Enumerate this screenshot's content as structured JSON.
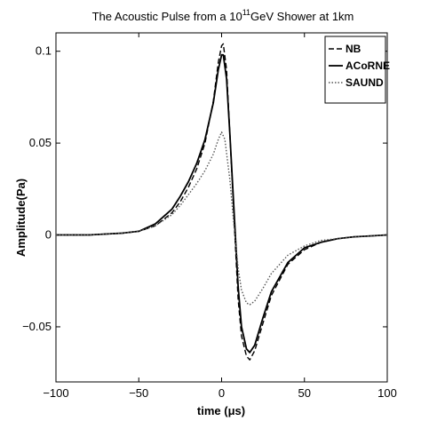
{
  "chart_data": {
    "type": "line",
    "title": {
      "prefix": "The Acoustic Pulse from a 10",
      "superscript": "11",
      "suffix": "GeV Shower at 1km"
    },
    "xlabel": "time (μs)",
    "ylabel": "Amplitude(Pa)",
    "xlim": [
      -100,
      100
    ],
    "ylim": [
      -0.08,
      0.11
    ],
    "xticks": [
      -100,
      -50,
      0,
      50,
      100
    ],
    "xtick_labels": [
      "−100",
      "−50",
      "0",
      "50",
      "100"
    ],
    "yticks": [
      -0.05,
      0,
      0.05,
      0.1
    ],
    "ytick_labels": [
      "−0.05",
      "0",
      "0.05",
      "0.1"
    ],
    "grid": false,
    "legend_position": "top-right",
    "series": [
      {
        "name": "NB",
        "style": "dashed",
        "color": "#000000",
        "x": [
          -100,
          -80,
          -60,
          -50,
          -40,
          -30,
          -25,
          -20,
          -15,
          -10,
          -5,
          -2,
          0,
          1,
          3,
          5,
          8,
          10,
          12,
          15,
          17,
          20,
          25,
          30,
          40,
          50,
          60,
          70,
          80,
          90,
          100
        ],
        "y": [
          0.0,
          0.0,
          0.001,
          0.002,
          0.005,
          0.012,
          0.018,
          0.026,
          0.036,
          0.05,
          0.073,
          0.094,
          0.103,
          0.104,
          0.09,
          0.055,
          0.0,
          -0.035,
          -0.055,
          -0.066,
          -0.068,
          -0.063,
          -0.048,
          -0.033,
          -0.016,
          -0.008,
          -0.004,
          -0.002,
          -0.001,
          -0.0005,
          0.0
        ]
      },
      {
        "name": "ACoRNE",
        "style": "solid",
        "color": "#000000",
        "x": [
          -100,
          -80,
          -60,
          -50,
          -40,
          -30,
          -25,
          -20,
          -15,
          -10,
          -5,
          -2,
          0,
          1,
          3,
          5,
          8,
          10,
          12,
          15,
          17,
          20,
          25,
          30,
          40,
          50,
          60,
          70,
          80,
          90,
          100
        ],
        "y": [
          0.0,
          0.0,
          0.001,
          0.002,
          0.006,
          0.014,
          0.021,
          0.029,
          0.039,
          0.052,
          0.072,
          0.09,
          0.098,
          0.098,
          0.085,
          0.055,
          0.005,
          -0.028,
          -0.05,
          -0.062,
          -0.064,
          -0.06,
          -0.045,
          -0.031,
          -0.015,
          -0.007,
          -0.004,
          -0.002,
          -0.001,
          -0.0005,
          0.0
        ]
      },
      {
        "name": "SAUND",
        "style": "dotted",
        "color": "#555555",
        "x": [
          -100,
          -80,
          -60,
          -50,
          -40,
          -30,
          -25,
          -20,
          -15,
          -10,
          -5,
          -2,
          0,
          2,
          5,
          8,
          10,
          12,
          15,
          17,
          20,
          25,
          30,
          40,
          50,
          60,
          70,
          80,
          90,
          100
        ],
        "y": [
          0.0,
          0.0,
          0.001,
          0.002,
          0.005,
          0.011,
          0.016,
          0.022,
          0.028,
          0.035,
          0.044,
          0.052,
          0.056,
          0.052,
          0.03,
          0.0,
          -0.018,
          -0.03,
          -0.037,
          -0.038,
          -0.036,
          -0.029,
          -0.021,
          -0.011,
          -0.006,
          -0.003,
          -0.002,
          -0.001,
          -0.0005,
          0.0
        ]
      }
    ]
  }
}
